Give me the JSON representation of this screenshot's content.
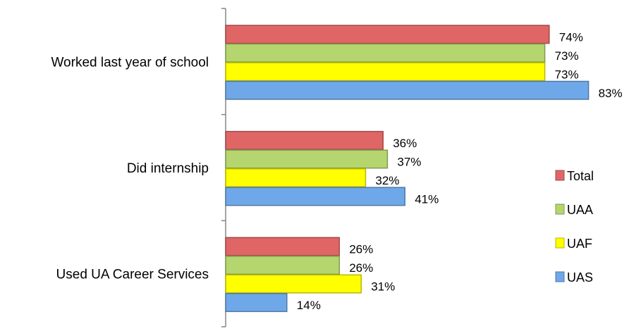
{
  "chart_data": {
    "type": "bar",
    "orientation": "horizontal",
    "title": "",
    "xlabel": "",
    "ylabel": "",
    "categories": [
      "Worked last year of school",
      "Did internship",
      "Used UA Career Services"
    ],
    "series": [
      {
        "name": "Total",
        "values": [
          74,
          36,
          26
        ],
        "color": "#e06666"
      },
      {
        "name": "UAA",
        "values": [
          73,
          37,
          26
        ],
        "color": "#b5d66e"
      },
      {
        "name": "UAF",
        "values": [
          73,
          32,
          31
        ],
        "color": "#ffff00"
      },
      {
        "name": "UAS",
        "values": [
          83,
          41,
          14
        ],
        "color": "#6fa8e8"
      }
    ],
    "value_suffix": "%",
    "xlim": [
      0,
      100
    ],
    "grid": false,
    "legend_position": "right"
  }
}
